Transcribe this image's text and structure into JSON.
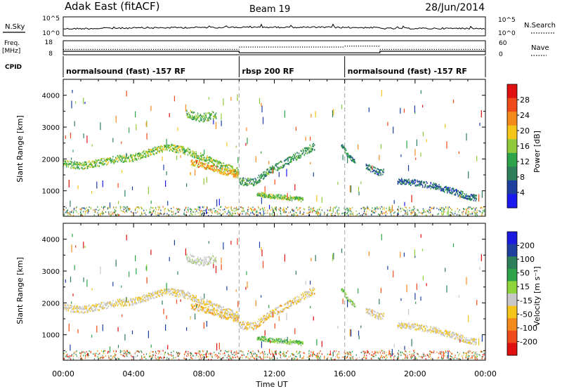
{
  "header": {
    "station": "Adak East (fitACF)",
    "beam": "Beam 19",
    "date": "28/Jun/2014"
  },
  "left_labels": {
    "nsky": "N.Sky",
    "freq": "Freq.",
    "freq_unit": "[MHz]",
    "cpid": "CPID"
  },
  "right_labels": {
    "nsearch": "N.Search",
    "nave": "Nave"
  },
  "noise_axis": {
    "left_ticks": [
      "10^5",
      "10^0"
    ],
    "right_ticks": [
      "10^5",
      "10^0"
    ]
  },
  "freq_axis": {
    "left_ticks": [
      "18",
      "8"
    ],
    "right_ticks": [
      "60",
      "0"
    ]
  },
  "cpid_segments": [
    {
      "label": "normalsound (fast) -157 RF",
      "start_hour": 0,
      "end_hour": 10
    },
    {
      "label": "rbsp 200 RF",
      "start_hour": 10,
      "end_hour": 16
    },
    {
      "label": "normalsound (fast) -157 RF",
      "start_hour": 16,
      "end_hour": 24
    }
  ],
  "power_colorbar": {
    "label": "Power [dB]",
    "ticks": [
      "28",
      "24",
      "20",
      "16",
      "12",
      "8",
      "4"
    ],
    "colors": [
      "#e01010",
      "#f04a1a",
      "#f58a1c",
      "#f5c518",
      "#8fca3a",
      "#2ea44a",
      "#2e7d5b",
      "#1f3f9f",
      "#1a1aee"
    ]
  },
  "velocity_colorbar": {
    "label": "Velocity [m s⁻¹]",
    "ticks": [
      "200",
      "100",
      "50",
      "15",
      "-15",
      "-50",
      "-100",
      "-200"
    ],
    "colors": [
      "#1a1ae0",
      "#1f3f9f",
      "#2e7d5b",
      "#2ea44a",
      "#8fd43a",
      "#c8c8c8",
      "#f5c518",
      "#f58a1c",
      "#f04a1a",
      "#e01010"
    ]
  },
  "x_axis": {
    "label": "Time UT",
    "ticks": [
      "00:00",
      "04:00",
      "08:00",
      "12:00",
      "16:00",
      "20:00",
      "00:00"
    ]
  },
  "chart_data": {
    "type": "heatmap",
    "title": "Adak East (fitACF) Beam 19 28/Jun/2014",
    "xlabel": "Time UT",
    "ylabel": "Slant Range [km]",
    "xlim_hours": [
      0,
      24
    ],
    "ylim_km": [
      200,
      4500
    ],
    "y_ticks": [
      1000,
      2000,
      3000,
      4000
    ],
    "control_program_changes_hours": [
      10,
      16
    ],
    "frequency_mhz": [
      {
        "start_hour": 0,
        "end_hour": 10,
        "value": 10.5
      },
      {
        "start_hour": 10,
        "end_hour": 18,
        "value": 9.4
      },
      {
        "start_hour": 18,
        "end_hour": 24,
        "value": 10.5
      }
    ],
    "panels": [
      {
        "name": "Power",
        "units": "dB",
        "range": [
          0,
          30
        ]
      },
      {
        "name": "Velocity",
        "units": "m s-1",
        "range": [
          -250,
          250
        ]
      }
    ],
    "echo_bands": [
      {
        "start_hour": 0.0,
        "end_hour": 10.0,
        "path_km": [
          [
            0.0,
            1850
          ],
          [
            1.0,
            1780
          ],
          [
            2.0,
            1880
          ],
          [
            3.0,
            1990
          ],
          [
            4.0,
            2040
          ],
          [
            5.0,
            2230
          ],
          [
            6.0,
            2360
          ],
          [
            7.0,
            2250
          ],
          [
            8.0,
            2020
          ],
          [
            9.0,
            1780
          ],
          [
            10.0,
            1600
          ]
        ],
        "thickness_km": 140,
        "power_db": 14,
        "velocity": -10
      },
      {
        "start_hour": 7.2,
        "end_hour": 10.0,
        "path_km": [
          [
            7.2,
            1900
          ],
          [
            8.0,
            1800
          ],
          [
            9.0,
            1620
          ],
          [
            10.0,
            1480
          ]
        ],
        "thickness_km": 130,
        "power_db": 20,
        "velocity": -20
      },
      {
        "start_hour": 7.0,
        "end_hour": 8.7,
        "path_km": [
          [
            7.0,
            3420
          ],
          [
            7.8,
            3280
          ],
          [
            8.7,
            3400
          ]
        ],
        "thickness_km": 160,
        "power_db": 12,
        "velocity": 5
      },
      {
        "start_hour": 10.0,
        "end_hour": 14.3,
        "path_km": [
          [
            10.0,
            1300
          ],
          [
            10.8,
            1250
          ],
          [
            11.5,
            1550
          ],
          [
            12.3,
            1800
          ],
          [
            13.0,
            2000
          ],
          [
            13.6,
            2200
          ],
          [
            14.3,
            2400
          ]
        ],
        "thickness_km": 150,
        "power_db": 10,
        "velocity": -15
      },
      {
        "start_hour": 11.0,
        "end_hour": 13.6,
        "path_km": [
          [
            11.0,
            900
          ],
          [
            12.0,
            820
          ],
          [
            13.0,
            760
          ],
          [
            13.6,
            720
          ]
        ],
        "thickness_km": 90,
        "power_db": 14,
        "velocity": 30
      },
      {
        "start_hour": 15.8,
        "end_hour": 16.6,
        "path_km": [
          [
            15.8,
            2420
          ],
          [
            16.2,
            2100
          ],
          [
            16.6,
            1900
          ]
        ],
        "thickness_km": 90,
        "power_db": 8,
        "velocity": 20
      },
      {
        "start_hour": 17.2,
        "end_hour": 18.2,
        "path_km": [
          [
            17.2,
            1750
          ],
          [
            18.0,
            1560
          ],
          [
            18.2,
            1600
          ]
        ],
        "thickness_km": 120,
        "power_db": 6,
        "velocity": -5
      },
      {
        "start_hour": 19.0,
        "end_hour": 23.5,
        "path_km": [
          [
            19.0,
            1300
          ],
          [
            20.0,
            1250
          ],
          [
            21.0,
            1150
          ],
          [
            22.0,
            1000
          ],
          [
            23.0,
            820
          ],
          [
            23.5,
            760
          ]
        ],
        "thickness_km": 120,
        "power_db": 6,
        "velocity": -10
      }
    ]
  }
}
